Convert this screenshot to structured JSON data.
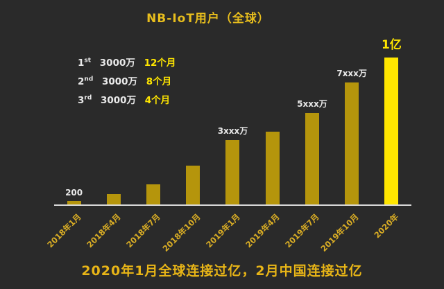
{
  "title": "NB-IoT用户（全球）",
  "footer": "2020年1月全球连接过亿，2月中国连接过亿",
  "milestones": [
    {
      "ord": "1",
      "sup": "st",
      "amount": "3000万",
      "duration": "12个月"
    },
    {
      "ord": "2",
      "sup": "nd",
      "amount": "3000万",
      "duration": "8个月"
    },
    {
      "ord": "3",
      "sup": "rd",
      "amount": "3000万",
      "duration": "4个月"
    }
  ],
  "colors": {
    "background": "#2a2a2a",
    "bar": "#b5950c",
    "bar_highlight": "#ffe600",
    "title": "#e8be1d",
    "axis_label": "#d9ad25",
    "value_label": "#e8e8e8",
    "footer": "#e8b517"
  },
  "chart_data": {
    "type": "bar",
    "title": "NB-IoT用户（全球）",
    "categories": [
      "2018年1月",
      "2018年4月",
      "2018年7月",
      "2018年10月",
      "2019年1月",
      "2019年4月",
      "2019年7月",
      "2019年10月",
      "2020年"
    ],
    "values": [
      200,
      600,
      1200,
      2300,
      3800,
      4300,
      5400,
      7200,
      10000
    ],
    "unit": "万",
    "bar_labels": [
      "200",
      "",
      "",
      "",
      "3xxx万",
      "",
      "5xxx万",
      "7xxx万",
      "1亿"
    ],
    "highlight_index": 8,
    "ylim": [
      0,
      10000
    ],
    "grid": false,
    "legend_position": "none",
    "annotation": "2020年1月全球连接过亿，2月中国连接过亿"
  }
}
